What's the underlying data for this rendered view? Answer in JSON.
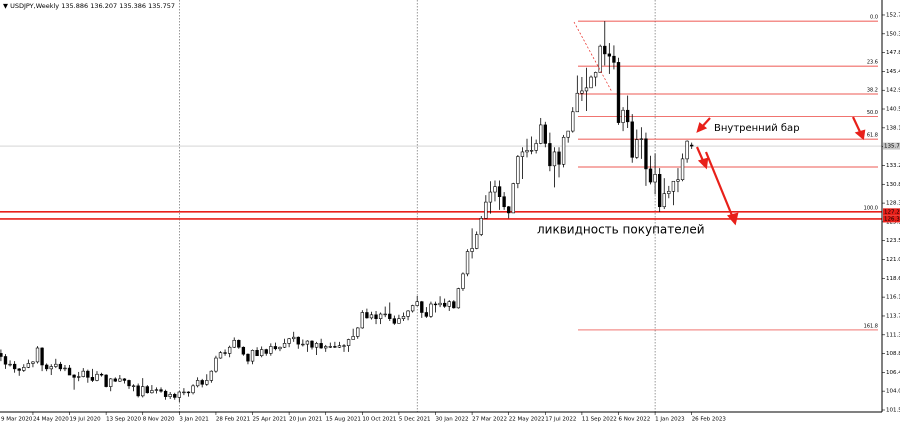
{
  "chart_data": {
    "type": "candlestick",
    "symbol": "USDJPY,Weekly",
    "ohlc": [
      [
        108.9,
        109.4,
        107.9,
        108.5
      ],
      [
        108.5,
        108.8,
        106.9,
        107.5
      ],
      [
        107.5,
        108.0,
        107.2,
        107.5
      ],
      [
        107.5,
        107.9,
        106.4,
        106.9
      ],
      [
        106.9,
        107.0,
        106.0,
        106.7
      ],
      [
        106.7,
        107.5,
        106.5,
        107.1
      ],
      [
        107.1,
        108.1,
        107.0,
        107.6
      ],
      [
        107.6,
        107.9,
        107.1,
        107.8
      ],
      [
        107.8,
        109.85,
        107.6,
        109.6
      ],
      [
        109.6,
        109.7,
        106.6,
        107.4
      ],
      [
        107.4,
        107.6,
        106.6,
        106.9
      ],
      [
        106.9,
        107.5,
        106.1,
        107.2
      ],
      [
        107.2,
        108.2,
        107.0,
        107.5
      ],
      [
        107.5,
        107.8,
        106.6,
        106.9
      ],
      [
        106.9,
        107.4,
        106.6,
        107.0
      ],
      [
        107.0,
        107.4,
        106.1,
        106.1
      ],
      [
        106.1,
        106.2,
        104.2,
        105.8
      ],
      [
        105.8,
        106.5,
        105.3,
        105.9
      ],
      [
        105.9,
        107.0,
        105.8,
        106.6
      ],
      [
        106.6,
        106.8,
        105.1,
        105.8
      ],
      [
        105.8,
        106.9,
        105.2,
        105.4
      ],
      [
        105.4,
        106.6,
        105.3,
        106.2
      ],
      [
        106.2,
        106.4,
        105.9,
        106.1
      ],
      [
        106.1,
        106.2,
        104.5,
        104.6
      ],
      [
        104.6,
        105.7,
        104.0,
        105.6
      ],
      [
        105.6,
        105.8,
        105.2,
        105.3
      ],
      [
        105.3,
        106.1,
        105.2,
        105.6
      ],
      [
        105.6,
        105.7,
        105.0,
        105.4
      ],
      [
        105.4,
        105.5,
        104.3,
        104.7
      ],
      [
        104.7,
        104.9,
        104.0,
        104.7
      ],
      [
        104.7,
        105.0,
        103.2,
        103.4
      ],
      [
        103.4,
        105.7,
        103.2,
        104.6
      ],
      [
        104.6,
        104.8,
        103.7,
        103.8
      ],
      [
        103.8,
        104.8,
        103.7,
        104.1
      ],
      [
        104.1,
        104.5,
        103.7,
        104.2
      ],
      [
        104.2,
        104.5,
        103.8,
        104.0
      ],
      [
        104.0,
        104.2,
        102.9,
        103.3
      ],
      [
        103.3,
        103.9,
        103.0,
        103.6
      ],
      [
        103.6,
        103.8,
        102.9,
        103.2
      ],
      [
        103.2,
        104.0,
        102.6,
        103.9
      ],
      [
        103.9,
        104.4,
        103.5,
        103.9
      ],
      [
        103.9,
        104.0,
        103.3,
        103.8
      ],
      [
        103.8,
        104.9,
        103.6,
        104.7
      ],
      [
        104.7,
        105.8,
        104.5,
        105.4
      ],
      [
        105.4,
        105.6,
        104.5,
        104.9
      ],
      [
        104.9,
        106.2,
        104.7,
        105.4
      ],
      [
        105.4,
        106.7,
        105.1,
        106.6
      ],
      [
        106.6,
        108.6,
        106.4,
        108.3
      ],
      [
        108.3,
        109.2,
        108.2,
        109.0
      ],
      [
        109.0,
        109.4,
        108.6,
        108.9
      ],
      [
        108.9,
        109.9,
        108.4,
        109.7
      ],
      [
        109.7,
        110.97,
        109.6,
        110.6
      ],
      [
        110.6,
        110.7,
        109.5,
        109.7
      ],
      [
        109.7,
        109.8,
        108.6,
        108.8
      ],
      [
        108.8,
        108.9,
        107.5,
        107.9
      ],
      [
        107.9,
        109.4,
        107.5,
        109.3
      ],
      [
        109.3,
        109.7,
        108.6,
        108.6
      ],
      [
        108.6,
        109.8,
        108.4,
        109.4
      ],
      [
        109.4,
        109.5,
        108.6,
        108.9
      ],
      [
        108.9,
        110.2,
        108.6,
        109.8
      ],
      [
        109.8,
        110.3,
        109.3,
        109.5
      ],
      [
        109.5,
        109.8,
        109.2,
        109.7
      ],
      [
        109.7,
        110.8,
        109.6,
        110.2
      ],
      [
        110.2,
        110.9,
        109.7,
        110.8
      ],
      [
        110.8,
        111.7,
        110.4,
        111.0
      ],
      [
        111.0,
        111.1,
        109.5,
        110.1
      ],
      [
        110.1,
        110.7,
        109.8,
        110.1
      ],
      [
        110.1,
        110.6,
        109.1,
        110.5
      ],
      [
        110.5,
        110.6,
        109.4,
        109.7
      ],
      [
        109.7,
        110.4,
        108.7,
        110.2
      ],
      [
        110.2,
        110.8,
        109.5,
        109.6
      ],
      [
        109.6,
        110.0,
        109.1,
        109.8
      ],
      [
        109.8,
        110.3,
        109.6,
        109.8
      ],
      [
        109.8,
        110.4,
        109.6,
        109.7
      ],
      [
        109.7,
        110.4,
        109.6,
        109.9
      ],
      [
        109.9,
        110.1,
        109.1,
        109.9
      ],
      [
        109.9,
        110.8,
        109.1,
        110.7
      ],
      [
        110.7,
        112.1,
        110.7,
        111.1
      ],
      [
        111.1,
        112.3,
        110.8,
        112.2
      ],
      [
        112.2,
        114.5,
        112.1,
        114.2
      ],
      [
        114.2,
        114.7,
        113.4,
        113.5
      ],
      [
        113.5,
        114.3,
        113.3,
        113.9
      ],
      [
        113.9,
        114.4,
        112.7,
        113.4
      ],
      [
        113.4,
        114.2,
        112.7,
        114.0
      ],
      [
        114.0,
        114.97,
        113.6,
        114.0
      ],
      [
        114.0,
        115.5,
        113.1,
        113.4
      ],
      [
        113.4,
        113.8,
        112.6,
        112.8
      ],
      [
        112.8,
        113.9,
        112.8,
        113.4
      ],
      [
        113.4,
        114.2,
        113.1,
        113.7
      ],
      [
        113.7,
        114.5,
        113.2,
        114.4
      ],
      [
        114.4,
        115.2,
        114.2,
        115.1
      ],
      [
        115.1,
        116.35,
        115.0,
        115.6
      ],
      [
        115.6,
        115.7,
        113.5,
        114.2
      ],
      [
        114.2,
        114.9,
        113.5,
        113.7
      ],
      [
        113.7,
        115.6,
        113.5,
        115.3
      ],
      [
        115.3,
        115.6,
        114.2,
        115.2
      ],
      [
        115.2,
        116.3,
        114.9,
        115.4
      ],
      [
        115.4,
        116.0,
        114.8,
        115.0
      ],
      [
        115.0,
        115.8,
        114.4,
        115.6
      ],
      [
        115.6,
        115.8,
        114.7,
        114.8
      ],
      [
        114.8,
        117.4,
        114.7,
        117.3
      ],
      [
        117.3,
        119.4,
        117.0,
        119.2
      ],
      [
        119.2,
        122.4,
        118.9,
        122.1
      ],
      [
        122.1,
        125.1,
        121.2,
        122.5
      ],
      [
        122.5,
        124.7,
        122.4,
        124.3
      ],
      [
        124.3,
        126.7,
        124.1,
        126.4
      ],
      [
        126.4,
        129.4,
        126.4,
        128.5
      ],
      [
        128.5,
        131.2,
        127.0,
        129.8
      ],
      [
        129.8,
        131.3,
        128.6,
        130.5
      ],
      [
        130.5,
        131.3,
        127.5,
        129.2
      ],
      [
        129.2,
        129.8,
        127.5,
        127.9
      ],
      [
        127.9,
        128.0,
        126.4,
        127.1
      ],
      [
        127.1,
        131.0,
        127.1,
        130.9
      ],
      [
        130.9,
        134.6,
        130.3,
        134.4
      ],
      [
        134.4,
        135.6,
        131.5,
        135.0
      ],
      [
        135.0,
        136.7,
        134.3,
        135.2
      ],
      [
        135.2,
        137.0,
        134.7,
        135.2
      ],
      [
        135.2,
        136.6,
        134.8,
        136.1
      ],
      [
        136.1,
        139.4,
        136.0,
        138.5
      ],
      [
        138.5,
        138.9,
        135.6,
        136.1
      ],
      [
        136.1,
        137.5,
        132.5,
        133.2
      ],
      [
        133.2,
        135.6,
        130.4,
        135.0
      ],
      [
        135.0,
        135.6,
        131.7,
        133.4
      ],
      [
        133.4,
        137.2,
        133.0,
        136.9
      ],
      [
        136.9,
        137.7,
        136.2,
        137.7
      ],
      [
        137.7,
        140.8,
        137.5,
        140.2
      ],
      [
        140.2,
        144.9,
        140.2,
        142.6
      ],
      [
        142.6,
        144.7,
        141.6,
        142.9
      ],
      [
        142.9,
        145.9,
        140.3,
        143.3
      ],
      [
        143.3,
        144.9,
        143.3,
        144.7
      ],
      [
        144.7,
        145.4,
        143.5,
        145.3
      ],
      [
        145.3,
        148.9,
        145.3,
        148.7
      ],
      [
        148.7,
        151.94,
        146.2,
        147.7
      ],
      [
        147.7,
        149.1,
        145.1,
        147.4
      ],
      [
        147.4,
        148.8,
        145.7,
        146.6
      ],
      [
        146.6,
        147.2,
        138.5,
        138.8
      ],
      [
        138.8,
        140.8,
        137.7,
        140.4
      ],
      [
        140.4,
        142.3,
        138.1,
        138.9
      ],
      [
        138.9,
        139.9,
        133.6,
        134.3
      ],
      [
        134.3,
        137.9,
        134.1,
        136.6
      ],
      [
        136.6,
        138.2,
        134.1,
        136.7
      ],
      [
        136.7,
        137.5,
        130.6,
        132.8
      ],
      [
        132.8,
        134.5,
        130.8,
        131.1
      ],
      [
        131.1,
        134.8,
        129.5,
        132.1
      ],
      [
        132.1,
        132.9,
        127.22,
        127.9
      ],
      [
        127.9,
        131.6,
        127.6,
        129.6
      ],
      [
        129.6,
        130.6,
        129.0,
        129.9
      ],
      [
        129.9,
        131.2,
        128.1,
        131.2
      ],
      [
        131.2,
        132.9,
        129.8,
        131.4
      ],
      [
        131.4,
        134.8,
        131.2,
        134.1
      ],
      [
        134.1,
        136.5,
        133.6,
        136.4
      ],
      [
        135.886,
        136.207,
        135.386,
        135.757
      ]
    ],
    "xlim": [
      -0.2,
      192.6
    ],
    "xticks": [
      {
        "value": -4,
        "label": "9 Mar 2020"
      },
      {
        "value": 7,
        "label": "24 May 2020"
      },
      {
        "value": 15,
        "label": "19 Jul 2020"
      },
      {
        "value": 23,
        "label": "13 Sep 2020"
      },
      {
        "value": 31,
        "label": "8 Nov 2020"
      },
      {
        "value": 39,
        "label": "3 Jan 2021"
      },
      {
        "value": 47,
        "label": "28 Feb 2021"
      },
      {
        "value": 55,
        "label": "25 Apr 2021"
      },
      {
        "value": 63,
        "label": "20 Jun 2021"
      },
      {
        "value": 71,
        "label": "15 Aug 2021"
      },
      {
        "value": 79,
        "label": "10 Oct 2021"
      },
      {
        "value": 87,
        "label": "5 Dec 2021"
      },
      {
        "value": 95,
        "label": "30 Jan 2022"
      },
      {
        "value": 103,
        "label": "27 Mar 2022"
      },
      {
        "value": 111,
        "label": "22 May 2022"
      },
      {
        "value": 119,
        "label": "17 Jul 2022"
      },
      {
        "value": 127,
        "label": "11 Sep 2022"
      },
      {
        "value": 135,
        "label": "6 Nov 2022"
      },
      {
        "value": 143,
        "label": "1 Jan 2023"
      },
      {
        "value": 151,
        "label": "26 Feb 2023"
      }
    ],
    "separators": [
      39,
      91,
      143
    ],
    "ylim": [
      101.31,
      154.68
    ],
    "yticks": [
      152.74,
      150.3,
      147.87,
      145.43,
      142.99,
      140.56,
      138.12,
      135.68,
      133.25,
      130.81,
      128.37,
      125.94,
      123.5,
      121.06,
      118.63,
      116.19,
      113.75,
      111.31,
      108.88,
      106.44,
      104.01,
      101.57
    ],
    "levels": [
      127.24,
      126.32
    ],
    "fibonacci": {
      "prices": [
        151.94,
        146.11,
        142.5,
        139.58,
        136.66,
        133.05,
        127.22,
        111.94
      ],
      "labels": [
        "0.0",
        "23.6",
        "38.2",
        "50.0",
        "61.8",
        null,
        "100.0",
        "161.8"
      ]
    },
    "annotations": [
      {
        "text": "Внутренний бар",
        "color": "#e8201a"
      },
      {
        "text": "ликвидность покупателей",
        "color": "#000000"
      }
    ]
  }
}
